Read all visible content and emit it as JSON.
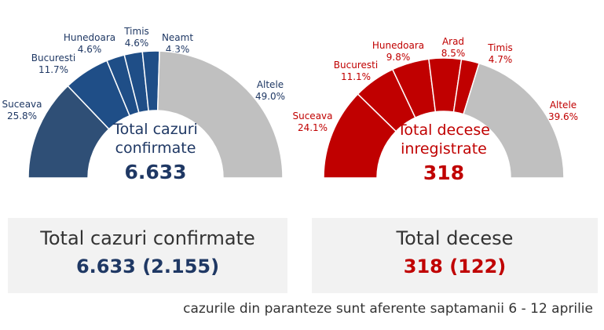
{
  "chart_data": [
    {
      "type": "pie",
      "variant": "half-donut",
      "center_title_line1": "Total cazuri",
      "center_title_line2": "confirmate",
      "center_value": "6.633",
      "categories": [
        "Suceava",
        "Bucuresti",
        "Hunedoara",
        "Timis",
        "Neamt",
        "Altele"
      ],
      "values": [
        25.8,
        11.7,
        4.6,
        4.6,
        4.3,
        49.0
      ],
      "value_labels": [
        "25.8%",
        "11.7%",
        "4.6%",
        "4.6%",
        "4.3%",
        "49.0%"
      ],
      "colors": [
        "#2f4f76",
        "#1f4e87",
        "#1f4e87",
        "#1f4e87",
        "#1f4e87",
        "#c0c0c0"
      ],
      "label_color": "#1f3864",
      "center_value_color": "#1f3864"
    },
    {
      "type": "pie",
      "variant": "half-donut",
      "center_title_line1": "Total decese",
      "center_title_line2": "inregistrate",
      "center_value": "318",
      "categories": [
        "Suceava",
        "Bucuresti",
        "Hunedoara",
        "Arad",
        "Timis",
        "Altele"
      ],
      "values": [
        24.1,
        11.1,
        9.8,
        8.5,
        4.7,
        39.6
      ],
      "value_labels": [
        "24.1%",
        "11.1%",
        "9.8%",
        "8.5%",
        "4.7%",
        "39.6%"
      ],
      "colors": [
        "#c00000",
        "#c00000",
        "#c00000",
        "#c00000",
        "#c00000",
        "#c0c0c0"
      ],
      "label_color": "#c00000",
      "center_value_color": "#c00000"
    }
  ],
  "summary": {
    "cases_title": "Total cazuri confirmate",
    "cases_value": "6.633 (2.155)",
    "deaths_title": "Total decese",
    "deaths_value": "318 (122)",
    "cases_color": "#1f3864",
    "deaths_color": "#c00000"
  },
  "footnote": "cazurile din paranteze sunt aferente saptamanii 6 - 12 aprilie"
}
